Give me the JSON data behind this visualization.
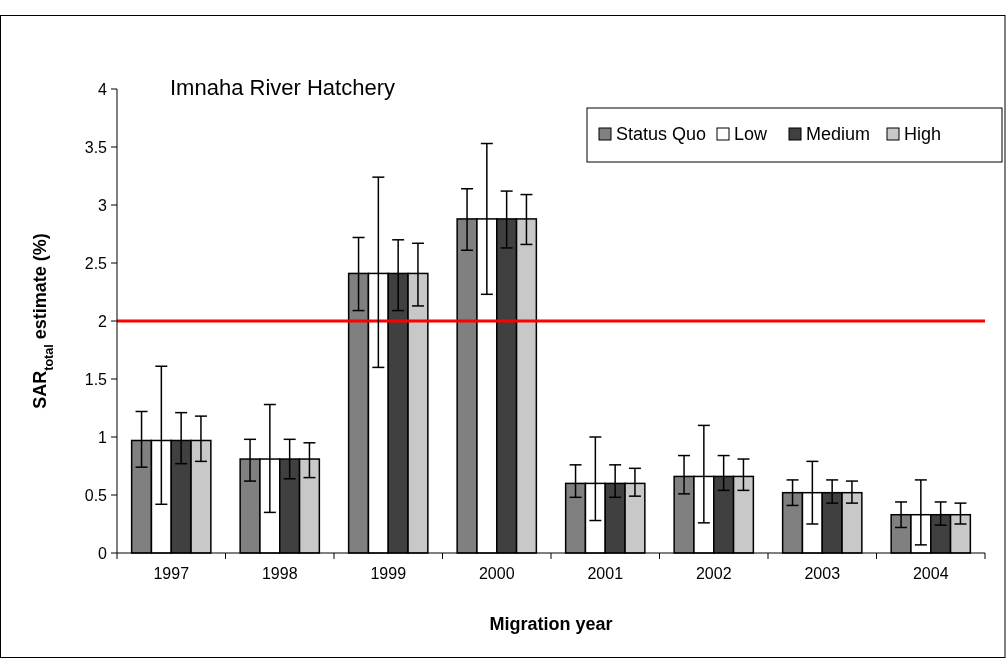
{
  "chart_data": {
    "type": "bar",
    "title": "Imnaha River Hatchery",
    "xlabel": "Migration year",
    "ylabel": "SAR$_{total}$ estimate (%)",
    "categories": [
      "1997",
      "1998",
      "1999",
      "2000",
      "2001",
      "2002",
      "2003",
      "2004"
    ],
    "series": [
      {
        "name": "Status Quo",
        "color": "#808080",
        "values": [
          0.97,
          0.81,
          2.41,
          2.88,
          0.6,
          0.66,
          0.52,
          0.33
        ],
        "errors": [
          [
            0.74,
            1.22
          ],
          [
            0.62,
            0.98
          ],
          [
            2.09,
            2.72
          ],
          [
            2.61,
            3.14
          ],
          [
            0.48,
            0.76
          ],
          [
            0.51,
            0.84
          ],
          [
            0.41,
            0.63
          ],
          [
            0.22,
            0.44
          ]
        ]
      },
      {
        "name": "Low",
        "color": "#ffffff",
        "values": [
          0.97,
          0.81,
          2.41,
          2.88,
          0.6,
          0.66,
          0.52,
          0.33
        ],
        "errors": [
          [
            0.42,
            1.61
          ],
          [
            0.35,
            1.28
          ],
          [
            1.6,
            3.24
          ],
          [
            2.23,
            3.53
          ],
          [
            0.28,
            1.0
          ],
          [
            0.26,
            1.1
          ],
          [
            0.25,
            0.79
          ],
          [
            0.07,
            0.63
          ]
        ]
      },
      {
        "name": "Medium",
        "color": "#404040",
        "values": [
          0.97,
          0.81,
          2.41,
          2.88,
          0.6,
          0.66,
          0.52,
          0.33
        ],
        "errors": [
          [
            0.77,
            1.21
          ],
          [
            0.64,
            0.98
          ],
          [
            2.09,
            2.7
          ],
          [
            2.63,
            3.12
          ],
          [
            0.48,
            0.76
          ],
          [
            0.54,
            0.84
          ],
          [
            0.43,
            0.63
          ],
          [
            0.24,
            0.44
          ]
        ]
      },
      {
        "name": "High",
        "color": "#c8c8c8",
        "values": [
          0.97,
          0.81,
          2.41,
          2.88,
          0.6,
          0.66,
          0.52,
          0.33
        ],
        "errors": [
          [
            0.79,
            1.18
          ],
          [
            0.65,
            0.95
          ],
          [
            2.13,
            2.67
          ],
          [
            2.66,
            3.09
          ],
          [
            0.49,
            0.73
          ],
          [
            0.54,
            0.81
          ],
          [
            0.43,
            0.62
          ],
          [
            0.25,
            0.43
          ]
        ]
      }
    ],
    "ylim": [
      0,
      4
    ],
    "yticks": [
      0,
      0.5,
      1,
      1.5,
      2,
      2.5,
      3,
      3.5,
      4
    ],
    "ref_lines": [
      {
        "axis": "y",
        "value": 2,
        "color": "#ff0000"
      }
    ],
    "legend": "top right"
  }
}
